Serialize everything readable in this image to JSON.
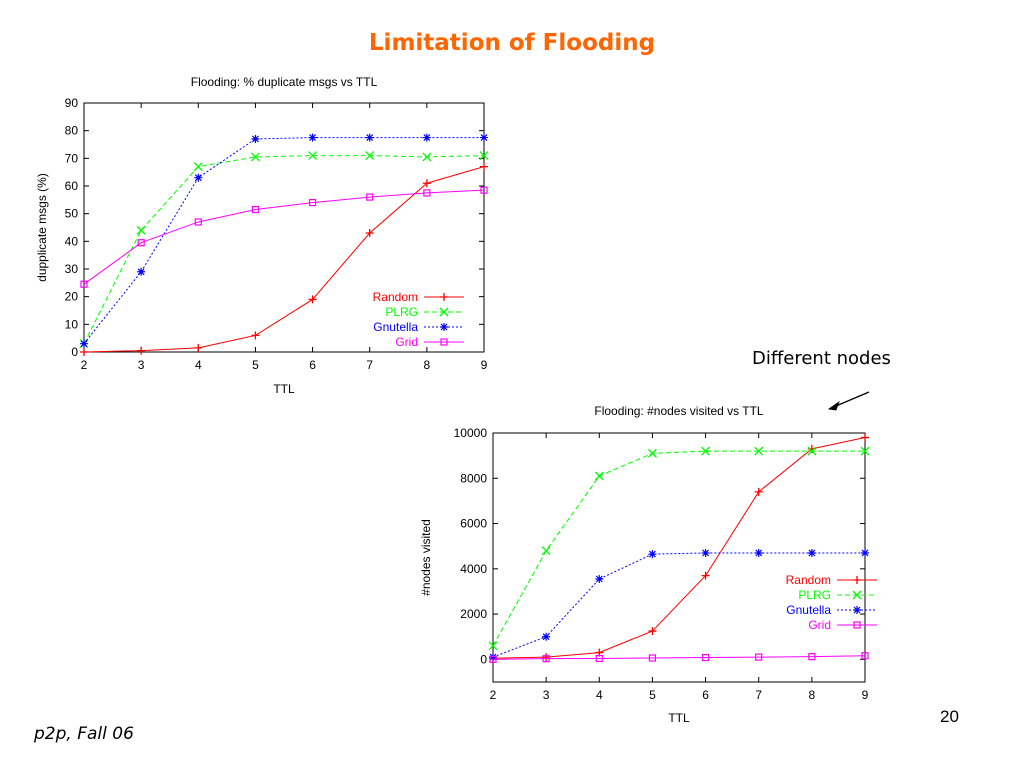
{
  "slide": {
    "title": "Limitation of Flooding",
    "annotation": "Different nodes",
    "footer": "p2p, Fall 06",
    "page_number": "20"
  },
  "chart_data": [
    {
      "type": "line",
      "title": "Flooding: % duplicate msgs vs TTL",
      "xlabel": "TTL",
      "ylabel": "dupplicate msgs (%)",
      "x": [
        2,
        3,
        4,
        5,
        6,
        7,
        8,
        9
      ],
      "xlim": [
        2,
        9
      ],
      "ylim": [
        0,
        90
      ],
      "yticks": [
        0,
        10,
        20,
        30,
        40,
        50,
        60,
        70,
        80,
        90
      ],
      "legend_position": "bottom-right",
      "grid": false,
      "series": [
        {
          "name": "Random",
          "color": "#ff0000",
          "marker": "plus",
          "dash": "solid",
          "values": [
            0,
            0.5,
            1.5,
            6,
            19,
            43,
            61,
            67
          ]
        },
        {
          "name": "PLRG",
          "color": "#00ff00",
          "marker": "cross",
          "dash": "dashed",
          "values": [
            3,
            44,
            67,
            70.5,
            71,
            71,
            70.5,
            71
          ]
        },
        {
          "name": "Gnutella",
          "color": "#0000ff",
          "marker": "star",
          "dash": "dotted",
          "values": [
            3,
            29,
            63,
            77,
            77.5,
            77.5,
            77.5,
            77.5
          ]
        },
        {
          "name": "Grid",
          "color": "#ff00ff",
          "marker": "square",
          "dash": "solid",
          "values": [
            24.5,
            39.5,
            47,
            51.5,
            54,
            56,
            57.5,
            58.5
          ]
        }
      ]
    },
    {
      "type": "line",
      "title": "Flooding: #nodes visited vs TTL",
      "xlabel": "TTL",
      "ylabel": "#nodes visited",
      "x": [
        2,
        3,
        4,
        5,
        6,
        7,
        8,
        9
      ],
      "xlim": [
        2,
        9
      ],
      "ylim": [
        -1000,
        10000
      ],
      "yticks": [
        0,
        2000,
        4000,
        6000,
        8000,
        10000
      ],
      "legend_position": "bottom-right",
      "grid": false,
      "series": [
        {
          "name": "Random",
          "color": "#ff0000",
          "marker": "plus",
          "dash": "solid",
          "values": [
            50,
            100,
            300,
            1250,
            3700,
            7400,
            9300,
            9800
          ]
        },
        {
          "name": "PLRG",
          "color": "#00ff00",
          "marker": "cross",
          "dash": "dashed",
          "values": [
            600,
            4800,
            8100,
            9100,
            9200,
            9200,
            9200,
            9200
          ]
        },
        {
          "name": "Gnutella",
          "color": "#0000ff",
          "marker": "star",
          "dash": "dotted",
          "values": [
            100,
            1000,
            3550,
            4650,
            4700,
            4700,
            4700,
            4700
          ]
        },
        {
          "name": "Grid",
          "color": "#ff00ff",
          "marker": "square",
          "dash": "solid",
          "values": [
            0,
            30,
            40,
            60,
            80,
            100,
            120,
            160
          ]
        }
      ]
    }
  ]
}
